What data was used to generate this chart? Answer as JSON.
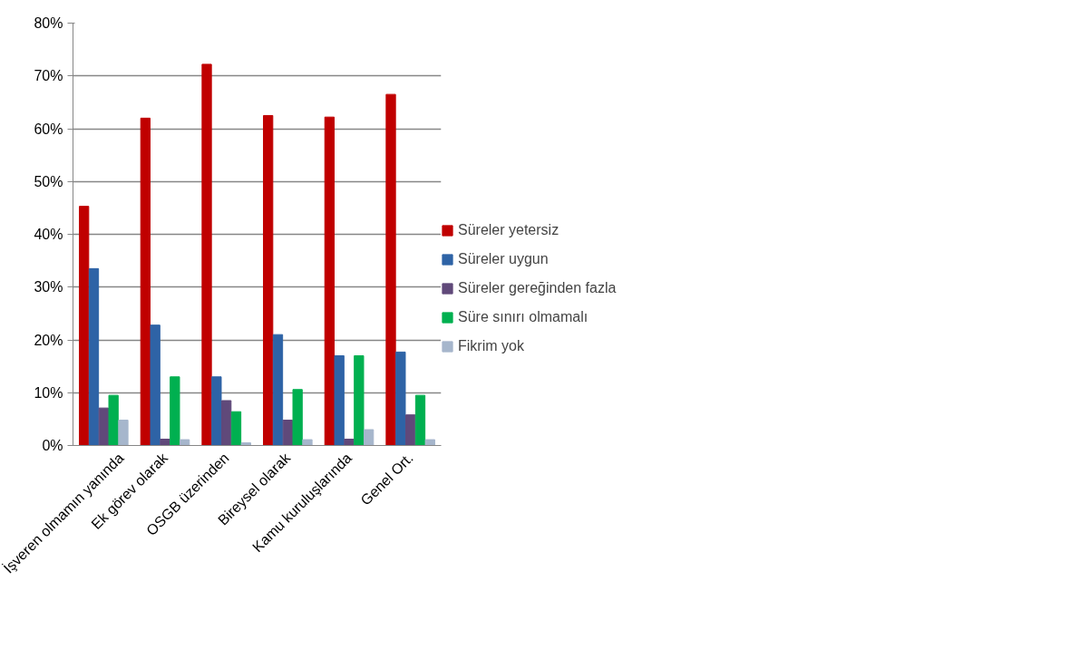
{
  "chart_data": {
    "type": "bar",
    "categories": [
      "İşveren olmamın yanında",
      "Ek görev olarak",
      "OSGB üzerinden",
      "Bireysel olarak",
      "Kamu kuruluşlarında",
      "Genel Ort."
    ],
    "series": [
      {
        "name": "Süreler yetersiz",
        "color": "#c00000",
        "values": [
          45.3,
          62.0,
          72.2,
          62.5,
          62.2,
          66.5
        ]
      },
      {
        "name": "Süreler uygun",
        "color": "#2e63a6",
        "values": [
          33.5,
          22.8,
          13.0,
          21.0,
          17.0,
          17.7
        ]
      },
      {
        "name": "Süreler gereğinden fazla",
        "color": "#60497a",
        "values": [
          7.1,
          1.2,
          8.5,
          4.8,
          1.2,
          5.8
        ]
      },
      {
        "name": "Süre sınırı olmamalı",
        "color": "#00b050",
        "values": [
          9.5,
          13.0,
          6.4,
          10.6,
          17.0,
          9.5
        ]
      },
      {
        "name": "Fikrim yok",
        "color": "#a6b6cc",
        "values": [
          4.8,
          1.1,
          0.5,
          1.1,
          3.0,
          1.1
        ]
      }
    ],
    "ylim": [
      0,
      80
    ],
    "yticks": [
      {
        "value": 0,
        "label": "0%"
      },
      {
        "value": 10,
        "label": "10%"
      },
      {
        "value": 20,
        "label": "20%"
      },
      {
        "value": 30,
        "label": "30%"
      },
      {
        "value": 40,
        "label": "40%"
      },
      {
        "value": 50,
        "label": "50%"
      },
      {
        "value": 60,
        "label": "60%"
      },
      {
        "value": 70,
        "label": "70%"
      },
      {
        "value": 80,
        "label": "80%"
      }
    ],
    "grid": "y",
    "legend": "right"
  }
}
